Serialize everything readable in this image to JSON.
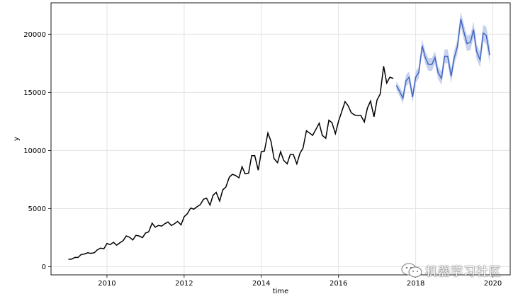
{
  "chart_data": {
    "type": "line",
    "title": "",
    "xlabel": "time",
    "ylabel": "y",
    "xlim": [
      2008.55,
      2020.45
    ],
    "ylim": [
      -700,
      22700
    ],
    "xticks": [
      2010,
      2012,
      2014,
      2016,
      2018,
      2020
    ],
    "xtick_labels": [
      "2010",
      "2012",
      "2014",
      "2016",
      "2018",
      "2020"
    ],
    "yticks": [
      0,
      5000,
      10000,
      15000,
      20000
    ],
    "ytick_labels": [
      "0",
      "5000",
      "10000",
      "15000",
      "20000"
    ],
    "grid": true,
    "colors": {
      "observed": "#000000",
      "forecast": "#4266c2",
      "interval": "#c6d2ee"
    },
    "series": [
      {
        "role": "observed",
        "x": [
          2009.0,
          2009.08,
          2009.17,
          2009.25,
          2009.33,
          2009.42,
          2009.5,
          2009.58,
          2009.67,
          2009.75,
          2009.83,
          2009.92,
          2010.0,
          2010.08,
          2010.17,
          2010.25,
          2010.33,
          2010.42,
          2010.5,
          2010.58,
          2010.67,
          2010.75,
          2010.83,
          2010.92,
          2011.0,
          2011.08,
          2011.17,
          2011.25,
          2011.33,
          2011.42,
          2011.5,
          2011.58,
          2011.67,
          2011.75,
          2011.83,
          2011.92,
          2012.0,
          2012.08,
          2012.17,
          2012.25,
          2012.33,
          2012.42,
          2012.5,
          2012.58,
          2012.67,
          2012.75,
          2012.83,
          2012.92,
          2013.0,
          2013.08,
          2013.17,
          2013.25,
          2013.33,
          2013.42,
          2013.5,
          2013.58,
          2013.67,
          2013.75,
          2013.83,
          2013.92,
          2014.0,
          2014.08,
          2014.17,
          2014.25,
          2014.33,
          2014.42,
          2014.5,
          2014.58,
          2014.67,
          2014.75,
          2014.83,
          2014.92,
          2015.0,
          2015.08,
          2015.17,
          2015.25,
          2015.33,
          2015.42,
          2015.5,
          2015.58,
          2015.67,
          2015.75,
          2015.83,
          2015.92,
          2016.0,
          2016.08,
          2016.17,
          2016.25,
          2016.33,
          2016.42,
          2016.5,
          2016.58,
          2016.67,
          2016.75,
          2016.83,
          2016.92,
          2017.0,
          2017.08,
          2017.17,
          2017.25,
          2017.33,
          2017.42
        ],
        "y": [
          650,
          650,
          800,
          800,
          1050,
          1100,
          1200,
          1150,
          1200,
          1450,
          1600,
          1550,
          2000,
          1900,
          2100,
          1850,
          2050,
          2250,
          2650,
          2550,
          2300,
          2700,
          2650,
          2500,
          2900,
          3000,
          3750,
          3400,
          3550,
          3500,
          3700,
          3850,
          3550,
          3700,
          3900,
          3600,
          4300,
          4550,
          5050,
          4950,
          5150,
          5350,
          5800,
          5900,
          5300,
          6150,
          6400,
          5650,
          6600,
          6850,
          7700,
          7950,
          7850,
          7650,
          8600,
          8000,
          8050,
          9550,
          9550,
          8300,
          9900,
          9950,
          11500,
          10800,
          9300,
          8950,
          9900,
          9150,
          8850,
          9650,
          9650,
          8850,
          9750,
          10200,
          11700,
          11500,
          11300,
          11850,
          12350,
          11300,
          11050,
          12600,
          12400,
          11450,
          12500,
          13300,
          14200,
          13850,
          13250,
          13050,
          13000,
          13000,
          12450,
          13650,
          14250,
          12900,
          14350,
          14850,
          17250,
          15800,
          16300,
          16200
        ]
      },
      {
        "role": "forecast",
        "x": [
          2017.5,
          2017.58,
          2017.67,
          2017.75,
          2017.83,
          2017.92,
          2018.0,
          2018.08,
          2018.17,
          2018.25,
          2018.33,
          2018.42,
          2018.5,
          2018.58,
          2018.67,
          2018.75,
          2018.83,
          2018.92,
          2019.0,
          2019.08,
          2019.17,
          2019.25,
          2019.33,
          2019.42,
          2019.5,
          2019.58,
          2019.67,
          2019.75,
          2019.83,
          2019.92
        ],
        "y": [
          15600,
          15100,
          14500,
          16000,
          16300,
          14600,
          16300,
          16700,
          19000,
          18000,
          17400,
          17400,
          18000,
          16700,
          16200,
          18100,
          18100,
          16400,
          18000,
          18900,
          21300,
          20200,
          19200,
          19300,
          20400,
          18500,
          17800,
          20100,
          19900,
          18200
        ],
        "lower": [
          15250,
          14700,
          14050,
          15500,
          15800,
          14100,
          15800,
          16200,
          18450,
          17450,
          16850,
          16850,
          17450,
          16150,
          15650,
          17500,
          17500,
          15800,
          17400,
          18300,
          20650,
          19550,
          18550,
          18650,
          19700,
          17850,
          17150,
          19400,
          19150,
          17450
        ],
        "upper": [
          15950,
          15500,
          14950,
          16500,
          16800,
          15100,
          16800,
          17200,
          19550,
          18550,
          17950,
          17950,
          18550,
          17250,
          16750,
          18700,
          18700,
          17000,
          18600,
          19500,
          21950,
          20850,
          19850,
          19950,
          21100,
          19150,
          18450,
          20800,
          20650,
          18950
        ]
      }
    ]
  },
  "watermark": {
    "text": "机器学习社区"
  }
}
